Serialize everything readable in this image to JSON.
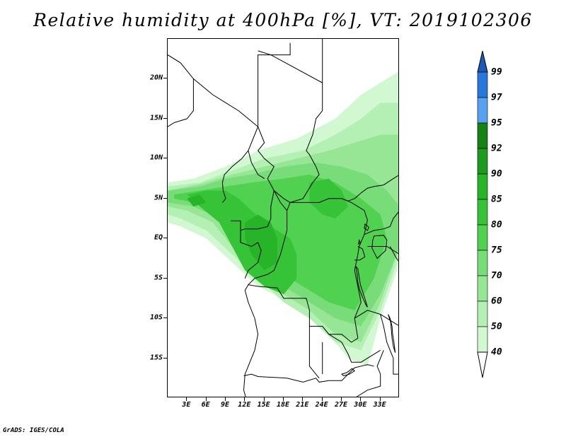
{
  "title": "Relative humidity at 400hPa [%], VT: 2019102306",
  "credit": "GrADS: IGES/COLA",
  "map": {
    "lon_range": [
      0,
      36
    ],
    "lat_range": [
      -20,
      25
    ],
    "lat_ticks": [
      {
        "value": 20,
        "label": "20N"
      },
      {
        "value": 15,
        "label": "15N"
      },
      {
        "value": 10,
        "label": "10N"
      },
      {
        "value": 5,
        "label": "5N"
      },
      {
        "value": 0,
        "label": "EQ"
      },
      {
        "value": -5,
        "label": "5S"
      },
      {
        "value": -10,
        "label": "10S"
      },
      {
        "value": -15,
        "label": "15S"
      }
    ],
    "lon_ticks": [
      {
        "value": 3,
        "label": "3E"
      },
      {
        "value": 6,
        "label": "6E"
      },
      {
        "value": 9,
        "label": "9E"
      },
      {
        "value": 12,
        "label": "12E"
      },
      {
        "value": 15,
        "label": "15E"
      },
      {
        "value": 18,
        "label": "18E"
      },
      {
        "value": 21,
        "label": "21E"
      },
      {
        "value": 24,
        "label": "24E"
      },
      {
        "value": 27,
        "label": "27E"
      },
      {
        "value": 30,
        "label": "30E"
      },
      {
        "value": 33,
        "label": "33E"
      }
    ]
  },
  "colorbar": {
    "levels": [
      {
        "label": "40",
        "color": "#e6fce6"
      },
      {
        "label": "50",
        "color": "#d2f8d2"
      },
      {
        "label": "60",
        "color": "#b4f0b4"
      },
      {
        "label": "70",
        "color": "#96e696"
      },
      {
        "label": "75",
        "color": "#78dc78"
      },
      {
        "label": "80",
        "color": "#50d250"
      },
      {
        "label": "85",
        "color": "#37c337"
      },
      {
        "label": "90",
        "color": "#28b428"
      },
      {
        "label": "92",
        "color": "#1e9b1e"
      },
      {
        "label": "95",
        "color": "#148214"
      },
      {
        "label": "97",
        "color": "#5aa0f0"
      },
      {
        "label": "99",
        "color": "#2878dc"
      }
    ],
    "top_color": "#1e5ab4"
  },
  "humidity_regions": [
    {
      "level": 1,
      "points": [
        [
          0,
          7
        ],
        [
          4,
          7.5
        ],
        [
          9,
          9
        ],
        [
          14,
          11
        ],
        [
          20,
          12.5
        ],
        [
          26,
          15
        ],
        [
          30,
          18
        ],
        [
          34,
          20
        ],
        [
          36,
          21
        ],
        [
          36,
          -3
        ],
        [
          33,
          -10
        ],
        [
          31,
          -16
        ],
        [
          28,
          -15
        ],
        [
          24,
          -11
        ],
        [
          19,
          -8
        ],
        [
          14,
          -6
        ],
        [
          10,
          -3
        ],
        [
          6,
          0
        ],
        [
          2,
          1.5
        ],
        [
          0,
          2
        ]
      ]
    },
    {
      "level": 2,
      "points": [
        [
          0,
          6.5
        ],
        [
          5,
          7
        ],
        [
          10,
          8.5
        ],
        [
          15,
          10
        ],
        [
          21,
          11
        ],
        [
          26,
          13
        ],
        [
          30,
          15
        ],
        [
          33,
          17
        ],
        [
          36,
          17
        ],
        [
          36,
          -2
        ],
        [
          33,
          -9
        ],
        [
          30,
          -14
        ],
        [
          26,
          -13
        ],
        [
          22,
          -10
        ],
        [
          18,
          -8
        ],
        [
          14,
          -5
        ],
        [
          10,
          -2
        ],
        [
          6,
          1
        ],
        [
          2,
          2.5
        ],
        [
          0,
          3
        ]
      ]
    },
    {
      "level": 3,
      "points": [
        [
          0,
          6
        ],
        [
          5,
          6.8
        ],
        [
          10,
          8
        ],
        [
          15,
          9
        ],
        [
          20,
          10
        ],
        [
          25,
          11
        ],
        [
          29,
          12
        ],
        [
          33,
          13
        ],
        [
          36,
          13
        ],
        [
          36,
          -1
        ],
        [
          33,
          -8
        ],
        [
          30,
          -13
        ],
        [
          26,
          -12
        ],
        [
          22,
          -9
        ],
        [
          18,
          -7
        ],
        [
          14,
          -4
        ],
        [
          10,
          -1
        ],
        [
          7,
          2
        ],
        [
          3,
          3.5
        ],
        [
          0,
          4
        ]
      ]
    },
    {
      "level": 4,
      "points": [
        [
          0,
          6
        ],
        [
          5,
          6.5
        ],
        [
          9,
          7.5
        ],
        [
          13,
          8
        ],
        [
          18,
          9
        ],
        [
          23,
          9.5
        ],
        [
          27,
          9
        ],
        [
          31,
          8
        ],
        [
          34,
          6
        ],
        [
          36,
          4
        ],
        [
          36,
          -1
        ],
        [
          33,
          -7
        ],
        [
          30,
          -11
        ],
        [
          26,
          -10
        ],
        [
          22,
          -8
        ],
        [
          18,
          -6
        ],
        [
          14,
          -3
        ],
        [
          11,
          0
        ],
        [
          8,
          2.5
        ],
        [
          4,
          4
        ],
        [
          0,
          4.5
        ]
      ]
    },
    {
      "level": 5,
      "points": [
        [
          1,
          5.5
        ],
        [
          5,
          6
        ],
        [
          9,
          6.5
        ],
        [
          13,
          7
        ],
        [
          18,
          7.5
        ],
        [
          22,
          8
        ],
        [
          26,
          7
        ],
        [
          30,
          5
        ],
        [
          33,
          3
        ],
        [
          34,
          0
        ],
        [
          32,
          -5
        ],
        [
          29,
          -9
        ],
        [
          25,
          -8
        ],
        [
          21,
          -6
        ],
        [
          17,
          -4
        ],
        [
          14,
          -1
        ],
        [
          11,
          1.5
        ],
        [
          8,
          3
        ],
        [
          4,
          4.5
        ],
        [
          1,
          5
        ]
      ]
    },
    {
      "level": 6,
      "points": [
        [
          3,
          5.5
        ],
        [
          6,
          6
        ],
        [
          9,
          6
        ],
        [
          11,
          5
        ],
        [
          13,
          3.5
        ],
        [
          15,
          2
        ],
        [
          17,
          1
        ],
        [
          19,
          0
        ],
        [
          20,
          -2
        ],
        [
          20,
          -5
        ],
        [
          18,
          -7
        ],
        [
          15,
          -6
        ],
        [
          12,
          -4
        ],
        [
          10,
          -1
        ],
        [
          8,
          2
        ],
        [
          5,
          4
        ]
      ]
    },
    {
      "level": 6,
      "points": [
        [
          22,
          7
        ],
        [
          25,
          7.5
        ],
        [
          27,
          6
        ],
        [
          28,
          4
        ],
        [
          26,
          2.5
        ],
        [
          24,
          3
        ],
        [
          22,
          4.5
        ]
      ]
    },
    {
      "level": 7,
      "points": [
        [
          12,
          2
        ],
        [
          14,
          3
        ],
        [
          16,
          2
        ],
        [
          17,
          0
        ],
        [
          17,
          -3
        ],
        [
          15,
          -4
        ],
        [
          13,
          -2
        ],
        [
          12,
          0
        ]
      ]
    },
    {
      "level": 7,
      "points": [
        [
          3,
          5
        ],
        [
          5,
          5.5
        ],
        [
          6,
          4.5
        ],
        [
          4,
          4
        ]
      ]
    }
  ],
  "borders": [
    [
      [
        0,
        23
      ],
      [
        2,
        22
      ],
      [
        4,
        20
      ],
      [
        7,
        18
      ],
      [
        9,
        17
      ],
      [
        11,
        16
      ],
      [
        12.5,
        15
      ],
      [
        14,
        14
      ],
      [
        14,
        23
      ],
      [
        19,
        23
      ],
      [
        19,
        24.5
      ]
    ],
    [
      [
        14,
        23.5
      ],
      [
        16,
        23
      ],
      [
        24,
        19.5
      ],
      [
        24,
        25
      ]
    ],
    [
      [
        24,
        19.5
      ],
      [
        24,
        16
      ],
      [
        23,
        15
      ],
      [
        22.5,
        13
      ],
      [
        22,
        12
      ],
      [
        21.5,
        11
      ],
      [
        22,
        10.5
      ],
      [
        23,
        9
      ],
      [
        23.5,
        8
      ],
      [
        22.5,
        7
      ],
      [
        21,
        5
      ],
      [
        19,
        4.5
      ],
      [
        18,
        5
      ],
      [
        16.5,
        6
      ],
      [
        15.5,
        7.5
      ],
      [
        16.5,
        9
      ],
      [
        15,
        10
      ],
      [
        14,
        11
      ],
      [
        15,
        12
      ],
      [
        14.5,
        13
      ],
      [
        14,
        14
      ]
    ],
    [
      [
        4,
        20
      ],
      [
        4,
        16
      ],
      [
        3,
        15
      ],
      [
        1,
        14.5
      ],
      [
        0,
        14
      ]
    ],
    [
      [
        14,
        14
      ],
      [
        13.5,
        13
      ],
      [
        12.5,
        11
      ],
      [
        11.5,
        10
      ],
      [
        10,
        9
      ],
      [
        8.8,
        8
      ],
      [
        8.5,
        7
      ],
      [
        8.6,
        6
      ],
      [
        9,
        5
      ],
      [
        8.5,
        4.5
      ]
    ],
    [
      [
        12.5,
        11
      ],
      [
        13,
        9.5
      ],
      [
        14,
        8
      ],
      [
        15,
        7.5
      ]
    ],
    [
      [
        16.5,
        6
      ],
      [
        16,
        4
      ],
      [
        16,
        2.5
      ],
      [
        15.5,
        1.5
      ],
      [
        14,
        1.2
      ],
      [
        12,
        1.2
      ],
      [
        11.3,
        1
      ],
      [
        11.3,
        2.2
      ],
      [
        9.8,
        2.2
      ]
    ],
    [
      [
        11.3,
        1
      ],
      [
        11.3,
        -0.5
      ],
      [
        13,
        -1
      ],
      [
        14,
        -0.5
      ],
      [
        14.5,
        -1.5
      ],
      [
        14,
        -3
      ],
      [
        12.5,
        -4
      ],
      [
        12,
        -5
      ]
    ],
    [
      [
        16.5,
        6
      ],
      [
        17.5,
        4.5
      ],
      [
        18.5,
        3.5
      ],
      [
        18.5,
        1
      ],
      [
        17.5,
        -2
      ],
      [
        16.5,
        -4
      ],
      [
        15.5,
        -4.5
      ],
      [
        13.5,
        -5
      ],
      [
        12.5,
        -5.8
      ],
      [
        14,
        -6
      ],
      [
        17,
        -6.2
      ],
      [
        18,
        -7.5
      ],
      [
        21.5,
        -7.5
      ],
      [
        22,
        -9
      ],
      [
        22,
        -11
      ],
      [
        24,
        -11
      ],
      [
        25,
        -12
      ],
      [
        27,
        -12
      ],
      [
        28.5,
        -13
      ],
      [
        29.5,
        -12.5
      ],
      [
        29,
        -10
      ],
      [
        30,
        -8
      ],
      [
        29.5,
        -6
      ],
      [
        29,
        -4
      ],
      [
        29.5,
        -2
      ],
      [
        29.7,
        -1
      ],
      [
        30.5,
        0.5
      ],
      [
        31,
        2.3
      ],
      [
        30.5,
        3.5
      ],
      [
        28.5,
        4.5
      ],
      [
        27,
        5
      ],
      [
        25,
        5
      ],
      [
        23.5,
        4.5
      ],
      [
        22,
        4.5
      ],
      [
        20.5,
        4.5
      ],
      [
        19,
        4.5
      ],
      [
        18.5,
        3.5
      ]
    ],
    [
      [
        27,
        5
      ],
      [
        28,
        4.7
      ],
      [
        29,
        5
      ],
      [
        30,
        5.7
      ],
      [
        31,
        6.3
      ],
      [
        32,
        6.5
      ],
      [
        33.5,
        6.7
      ],
      [
        35,
        7.5
      ],
      [
        36,
        8
      ]
    ],
    [
      [
        30.5,
        0.5
      ],
      [
        32,
        1
      ],
      [
        33.5,
        1.2
      ],
      [
        34.5,
        1.5
      ],
      [
        35,
        2.5
      ],
      [
        36,
        3.5
      ]
    ],
    [
      [
        31,
        -1
      ],
      [
        33,
        -1
      ],
      [
        34,
        -1
      ],
      [
        36,
        -2
      ]
    ],
    [
      [
        29.5,
        -1
      ],
      [
        30.2,
        -1.3
      ],
      [
        30.6,
        -2.3
      ],
      [
        29.8,
        -2.7
      ],
      [
        29,
        -2.7
      ]
    ],
    [
      [
        12.5,
        -5.8
      ],
      [
        12,
        -6.5
      ],
      [
        12.5,
        -8
      ],
      [
        13.5,
        -10
      ],
      [
        14,
        -12
      ],
      [
        13.5,
        -14
      ],
      [
        12.5,
        -16
      ],
      [
        12,
        -17
      ],
      [
        11.8,
        -19
      ],
      [
        12.5,
        -21
      ]
    ],
    [
      [
        11.8,
        -17.2
      ],
      [
        13,
        -17
      ],
      [
        14,
        -17.3
      ],
      [
        18.5,
        -17.5
      ],
      [
        21,
        -18
      ],
      [
        23,
        -17.5
      ],
      [
        23.5,
        -18
      ],
      [
        25,
        -17.8
      ]
    ],
    [
      [
        22,
        -11
      ],
      [
        22,
        -13
      ],
      [
        22,
        -16
      ],
      [
        23.5,
        -17.5
      ]
    ],
    [
      [
        24,
        -13
      ],
      [
        24,
        -15
      ],
      [
        24,
        -17
      ]
    ],
    [
      [
        25,
        -12
      ],
      [
        27,
        -13
      ],
      [
        28,
        -14.5
      ],
      [
        28.5,
        -15.5
      ],
      [
        30,
        -15.5
      ],
      [
        31,
        -15
      ],
      [
        33,
        -14
      ]
    ],
    [
      [
        29,
        -10
      ],
      [
        31,
        -9
      ],
      [
        33,
        -9.5
      ],
      [
        34,
        -10
      ],
      [
        35,
        -10.5
      ],
      [
        36,
        -11
      ]
    ],
    [
      [
        33,
        -9.5
      ],
      [
        33.5,
        -11
      ],
      [
        34,
        -13
      ],
      [
        34.5,
        -14
      ],
      [
        35,
        -15
      ],
      [
        35,
        -17
      ],
      [
        36,
        -17
      ]
    ],
    [
      [
        29,
        -20
      ],
      [
        31,
        -19
      ],
      [
        33,
        -18.5
      ],
      [
        33,
        -17
      ],
      [
        32.5,
        -16
      ],
      [
        33,
        -15
      ],
      [
        33.5,
        -14
      ]
    ],
    [
      [
        25,
        -17.8
      ],
      [
        27,
        -17.8
      ],
      [
        28,
        -17
      ],
      [
        29,
        -16.2
      ],
      [
        30,
        -16
      ],
      [
        31,
        -15.8
      ],
      [
        32,
        -16
      ]
    ],
    [
      [
        34.5,
        -1
      ],
      [
        35.5,
        -2.5
      ],
      [
        36,
        -3
      ]
    ]
  ],
  "lakes": [
    [
      [
        32,
        0.3
      ],
      [
        33.5,
        0.4
      ],
      [
        34,
        -0.2
      ],
      [
        33.8,
        -1.5
      ],
      [
        32.5,
        -2.5
      ],
      [
        31.7,
        -1.2
      ],
      [
        31.8,
        -0.3
      ]
    ],
    [
      [
        29.2,
        -3.5
      ],
      [
        29.4,
        -4.5
      ],
      [
        29.5,
        -5.5
      ],
      [
        29.8,
        -6.5
      ],
      [
        30.3,
        -7.5
      ],
      [
        30.8,
        -8.4
      ],
      [
        31,
        -8.6
      ],
      [
        30.7,
        -7.8
      ],
      [
        30.3,
        -6.8
      ],
      [
        29.9,
        -5.8
      ],
      [
        29.7,
        -4.8
      ],
      [
        29.5,
        -3.8
      ]
    ],
    [
      [
        34.2,
        -9.5
      ],
      [
        34.6,
        -10.5
      ],
      [
        34.7,
        -11.5
      ],
      [
        34.8,
        -12.5
      ],
      [
        35,
        -13.5
      ],
      [
        35.3,
        -14.3
      ],
      [
        35.1,
        -13
      ],
      [
        34.9,
        -12
      ],
      [
        34.8,
        -11
      ],
      [
        34.5,
        -10
      ]
    ],
    [
      [
        27,
        -17
      ],
      [
        27.8,
        -16.8
      ],
      [
        28.6,
        -16.3
      ],
      [
        29,
        -16.6
      ],
      [
        28.2,
        -17
      ],
      [
        27.3,
        -17.2
      ]
    ],
    [
      [
        30.6,
        1.8
      ],
      [
        31.2,
        1.4
      ],
      [
        31,
        1
      ],
      [
        30.5,
        1.3
      ]
    ],
    [
      [
        29.7,
        -0.2
      ],
      [
        29.9,
        -0.6
      ],
      [
        29.6,
        -0.7
      ]
    ]
  ]
}
